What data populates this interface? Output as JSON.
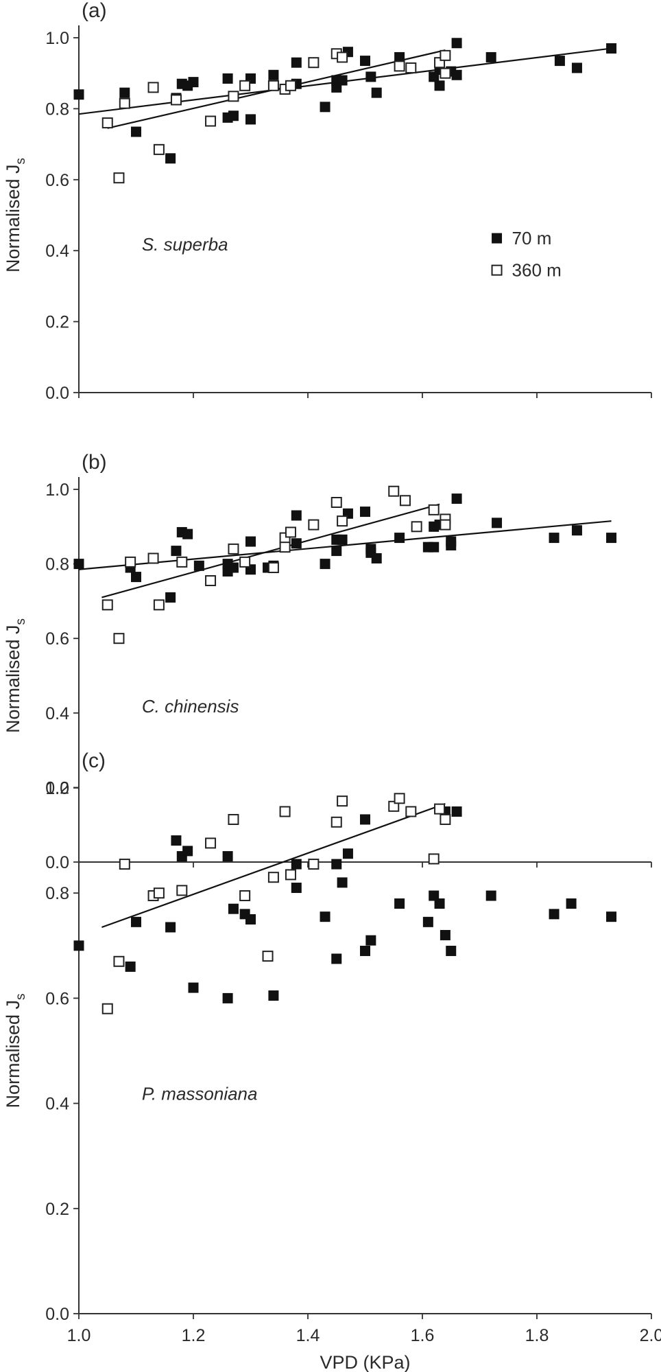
{
  "chart_data": [
    {
      "type": "scatter",
      "panel_label": "(a)",
      "species": "S. superba",
      "xlabel": "",
      "ylabel": "Normalised J",
      "ylabel_sub": "s",
      "xlim": [
        1.0,
        2.0
      ],
      "ylim": [
        0.0,
        1.0
      ],
      "yticks": [
        "0.0",
        "0.2",
        "0.4",
        "0.6",
        "0.8",
        "1.0"
      ],
      "legend": [
        "70 m",
        "360 m"
      ],
      "legend_position": "middle-right",
      "series": [
        {
          "name": "70 m",
          "marker": "filled-square",
          "points": [
            [
              1.0,
              0.84
            ],
            [
              1.08,
              0.845
            ],
            [
              1.1,
              0.735
            ],
            [
              1.16,
              0.66
            ],
            [
              1.17,
              0.83
            ],
            [
              1.18,
              0.87
            ],
            [
              1.19,
              0.865
            ],
            [
              1.2,
              0.875
            ],
            [
              1.26,
              0.885
            ],
            [
              1.26,
              0.775
            ],
            [
              1.27,
              0.78
            ],
            [
              1.3,
              0.885
            ],
            [
              1.3,
              0.77
            ],
            [
              1.34,
              0.895
            ],
            [
              1.38,
              0.93
            ],
            [
              1.38,
              0.87
            ],
            [
              1.43,
              0.805
            ],
            [
              1.45,
              0.86
            ],
            [
              1.45,
              0.88
            ],
            [
              1.46,
              0.88
            ],
            [
              1.47,
              0.96
            ],
            [
              1.5,
              0.935
            ],
            [
              1.51,
              0.89
            ],
            [
              1.52,
              0.845
            ],
            [
              1.56,
              0.945
            ],
            [
              1.62,
              0.89
            ],
            [
              1.63,
              0.865
            ],
            [
              1.63,
              0.91
            ],
            [
              1.64,
              0.95
            ],
            [
              1.65,
              0.905
            ],
            [
              1.66,
              0.895
            ],
            [
              1.66,
              0.985
            ],
            [
              1.72,
              0.945
            ],
            [
              1.84,
              0.935
            ],
            [
              1.87,
              0.915
            ],
            [
              1.93,
              0.97
            ]
          ],
          "fit": [
            [
              1.0,
              0.785
            ],
            [
              1.93,
              0.97
            ]
          ]
        },
        {
          "name": "360 m",
          "marker": "open-square",
          "points": [
            [
              1.05,
              0.76
            ],
            [
              1.07,
              0.605
            ],
            [
              1.08,
              0.815
            ],
            [
              1.13,
              0.86
            ],
            [
              1.14,
              0.685
            ],
            [
              1.17,
              0.825
            ],
            [
              1.23,
              0.765
            ],
            [
              1.27,
              0.835
            ],
            [
              1.29,
              0.865
            ],
            [
              1.34,
              0.865
            ],
            [
              1.36,
              0.855
            ],
            [
              1.37,
              0.865
            ],
            [
              1.41,
              0.93
            ],
            [
              1.45,
              0.955
            ],
            [
              1.46,
              0.945
            ],
            [
              1.56,
              0.92
            ],
            [
              1.58,
              0.915
            ],
            [
              1.63,
              0.93
            ],
            [
              1.64,
              0.95
            ],
            [
              1.64,
              0.9
            ]
          ],
          "fit": [
            [
              1.05,
              0.745
            ],
            [
              1.64,
              0.965
            ]
          ]
        }
      ]
    },
    {
      "type": "scatter",
      "panel_label": "(b)",
      "species": "C. chinensis",
      "xlabel": "",
      "ylabel": "Normalised J",
      "ylabel_sub": "s",
      "xlim": [
        1.0,
        2.0
      ],
      "ylim": [
        0.0,
        1.0
      ],
      "yticks": [
        "0.0",
        "0.2",
        "0.4",
        "0.6",
        "0.8",
        "1.0"
      ],
      "series": [
        {
          "name": "70 m",
          "marker": "filled-square",
          "points": [
            [
              1.0,
              0.8
            ],
            [
              1.09,
              0.79
            ],
            [
              1.1,
              0.765
            ],
            [
              1.16,
              0.71
            ],
            [
              1.17,
              0.835
            ],
            [
              1.18,
              0.885
            ],
            [
              1.19,
              0.88
            ],
            [
              1.21,
              0.795
            ],
            [
              1.26,
              0.78
            ],
            [
              1.26,
              0.8
            ],
            [
              1.27,
              0.79
            ],
            [
              1.3,
              0.86
            ],
            [
              1.3,
              0.785
            ],
            [
              1.33,
              0.79
            ],
            [
              1.34,
              0.795
            ],
            [
              1.38,
              0.93
            ],
            [
              1.38,
              0.855
            ],
            [
              1.43,
              0.8
            ],
            [
              1.45,
              0.835
            ],
            [
              1.45,
              0.865
            ],
            [
              1.46,
              0.865
            ],
            [
              1.47,
              0.935
            ],
            [
              1.5,
              0.94
            ],
            [
              1.51,
              0.84
            ],
            [
              1.51,
              0.83
            ],
            [
              1.52,
              0.815
            ],
            [
              1.56,
              0.87
            ],
            [
              1.61,
              0.845
            ],
            [
              1.62,
              0.845
            ],
            [
              1.62,
              0.9
            ],
            [
              1.63,
              0.905
            ],
            [
              1.65,
              0.86
            ],
            [
              1.65,
              0.85
            ],
            [
              1.66,
              0.975
            ],
            [
              1.73,
              0.91
            ],
            [
              1.83,
              0.87
            ],
            [
              1.87,
              0.89
            ],
            [
              1.93,
              0.87
            ]
          ],
          "fit": [
            [
              1.0,
              0.785
            ],
            [
              1.93,
              0.915
            ]
          ]
        },
        {
          "name": "360 m",
          "marker": "open-square",
          "points": [
            [
              1.05,
              0.69
            ],
            [
              1.07,
              0.6
            ],
            [
              1.09,
              0.805
            ],
            [
              1.13,
              0.815
            ],
            [
              1.14,
              0.69
            ],
            [
              1.18,
              0.805
            ],
            [
              1.23,
              0.755
            ],
            [
              1.27,
              0.84
            ],
            [
              1.29,
              0.805
            ],
            [
              1.34,
              0.79
            ],
            [
              1.36,
              0.87
            ],
            [
              1.36,
              0.845
            ],
            [
              1.37,
              0.885
            ],
            [
              1.41,
              0.905
            ],
            [
              1.45,
              0.965
            ],
            [
              1.46,
              0.915
            ],
            [
              1.55,
              0.995
            ],
            [
              1.57,
              0.97
            ],
            [
              1.59,
              0.9
            ],
            [
              1.62,
              0.945
            ],
            [
              1.64,
              0.92
            ],
            [
              1.64,
              0.905
            ]
          ],
          "fit": [
            [
              1.04,
              0.71
            ],
            [
              1.63,
              0.96
            ]
          ]
        }
      ]
    },
    {
      "type": "scatter",
      "panel_label": "(c)",
      "species": "P. massoniana",
      "xlabel": "VPD (KPa)",
      "ylabel": "Normalised J",
      "ylabel_sub": "s",
      "xlim": [
        1.0,
        2.0
      ],
      "ylim": [
        0.0,
        1.0
      ],
      "xticks": [
        "1.0",
        "1.2",
        "1.4",
        "1.6",
        "1.8",
        "2.0"
      ],
      "yticks": [
        "0.0",
        "0.2",
        "0.4",
        "0.6",
        "0.8",
        "1.0"
      ],
      "series": [
        {
          "name": "70 m",
          "marker": "filled-square",
          "points": [
            [
              1.0,
              0.7
            ],
            [
              1.09,
              0.66
            ],
            [
              1.1,
              0.745
            ],
            [
              1.16,
              0.735
            ],
            [
              1.17,
              0.9
            ],
            [
              1.18,
              0.87
            ],
            [
              1.19,
              0.88
            ],
            [
              1.2,
              0.62
            ],
            [
              1.26,
              0.87
            ],
            [
              1.26,
              0.6
            ],
            [
              1.27,
              0.77
            ],
            [
              1.29,
              0.76
            ],
            [
              1.3,
              0.75
            ],
            [
              1.34,
              0.605
            ],
            [
              1.38,
              0.855
            ],
            [
              1.38,
              0.81
            ],
            [
              1.43,
              0.755
            ],
            [
              1.45,
              0.855
            ],
            [
              1.45,
              0.675
            ],
            [
              1.46,
              0.82
            ],
            [
              1.47,
              0.875
            ],
            [
              1.5,
              0.94
            ],
            [
              1.5,
              0.69
            ],
            [
              1.51,
              0.71
            ],
            [
              1.56,
              0.78
            ],
            [
              1.61,
              0.745
            ],
            [
              1.62,
              0.795
            ],
            [
              1.63,
              0.78
            ],
            [
              1.64,
              0.955
            ],
            [
              1.64,
              0.72
            ],
            [
              1.65,
              0.69
            ],
            [
              1.66,
              0.955
            ],
            [
              1.72,
              0.795
            ],
            [
              1.83,
              0.76
            ],
            [
              1.86,
              0.78
            ],
            [
              1.93,
              0.755
            ]
          ],
          "fit": []
        },
        {
          "name": "360 m",
          "marker": "open-square",
          "points": [
            [
              1.05,
              0.58
            ],
            [
              1.07,
              0.67
            ],
            [
              1.08,
              0.855
            ],
            [
              1.13,
              0.795
            ],
            [
              1.14,
              0.8
            ],
            [
              1.18,
              0.805
            ],
            [
              1.23,
              0.895
            ],
            [
              1.27,
              0.94
            ],
            [
              1.29,
              0.795
            ],
            [
              1.33,
              0.68
            ],
            [
              1.34,
              0.83
            ],
            [
              1.36,
              0.955
            ],
            [
              1.37,
              0.835
            ],
            [
              1.41,
              0.855
            ],
            [
              1.45,
              0.935
            ],
            [
              1.46,
              0.975
            ],
            [
              1.55,
              0.965
            ],
            [
              1.56,
              0.98
            ],
            [
              1.58,
              0.955
            ],
            [
              1.62,
              0.865
            ],
            [
              1.63,
              0.96
            ],
            [
              1.64,
              0.94
            ]
          ],
          "fit": [
            [
              1.04,
              0.735
            ],
            [
              1.64,
              0.97
            ]
          ]
        }
      ]
    }
  ]
}
